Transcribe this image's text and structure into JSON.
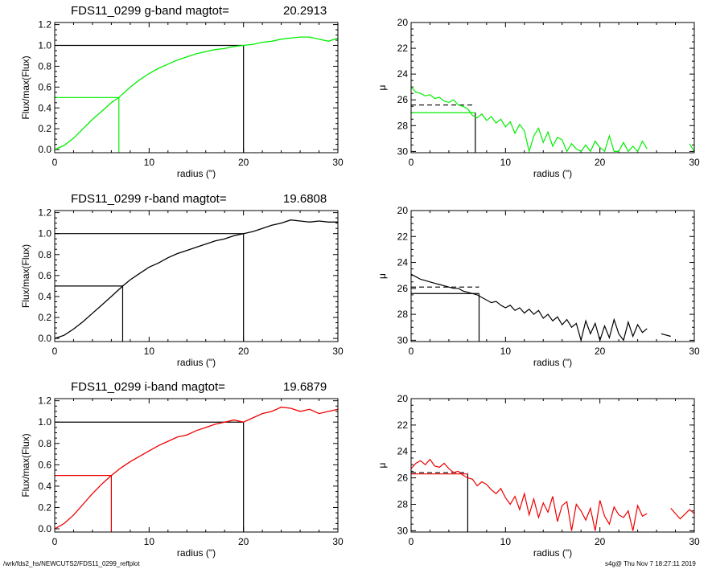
{
  "footer": {
    "path": "/wrk/fds2_hs/NEWCUTS2/FDS11_0299_reffplot",
    "stamp": "s4g@  Thu Nov  7 18:27:11 2019"
  },
  "chart_data": [
    {
      "type": "line",
      "band": "g",
      "color": "#00ee00",
      "title": "FDS11_0299 g-band  magtot=",
      "magtot": "20.2913",
      "xlabel": "radius (\")",
      "ylabel": "Flux/max(Flux)",
      "xlim": [
        0,
        30
      ],
      "ylim": [
        -0.03,
        1.22
      ],
      "xticks": [
        "0",
        "10",
        "20",
        "30"
      ],
      "yticks": [
        "0.0",
        "0.2",
        "0.4",
        "0.6",
        "0.8",
        "1.0",
        "1.2"
      ],
      "x": [
        0,
        1,
        2,
        3,
        4,
        5,
        6,
        6.8,
        8,
        9,
        10,
        11,
        12,
        13,
        14,
        15,
        16,
        17,
        18,
        19,
        20,
        21,
        22,
        23,
        24,
        25,
        26,
        27,
        28,
        29,
        30
      ],
      "y": [
        0,
        0.04,
        0.11,
        0.2,
        0.29,
        0.37,
        0.45,
        0.5,
        0.6,
        0.67,
        0.73,
        0.78,
        0.82,
        0.86,
        0.89,
        0.92,
        0.94,
        0.96,
        0.97,
        0.99,
        1.0,
        1.01,
        1.03,
        1.04,
        1.06,
        1.07,
        1.08,
        1.08,
        1.06,
        1.04,
        1.07
      ],
      "r_half": 6.8,
      "r_max": 20
    },
    {
      "type": "line",
      "band": "g",
      "color": "#00ee00",
      "xlabel": "radius (\")",
      "ylabel": "μ",
      "xlim": [
        0,
        30
      ],
      "ylim": [
        30.1,
        20
      ],
      "y_inverted": true,
      "xticks": [
        "0",
        "10",
        "20",
        "30"
      ],
      "yticks": [
        "20",
        "22",
        "24",
        "26",
        "28",
        "30"
      ],
      "x": [
        0,
        0.5,
        1,
        1.5,
        2,
        2.5,
        3,
        3.5,
        4,
        4.5,
        5,
        5.5,
        6,
        6.5,
        7,
        7.5,
        8,
        8.5,
        9,
        9.5,
        10,
        10.5,
        11,
        11.5,
        12,
        12.5,
        13,
        13.5,
        14,
        14.5,
        15,
        15.5,
        16,
        16.5,
        17,
        17.5,
        18,
        18.5,
        19,
        19.5,
        20,
        20.5,
        21,
        21.5,
        22,
        22.5,
        23,
        23.5,
        24,
        24.5,
        25,
        29.5,
        30
      ],
      "y": [
        25.0,
        25.4,
        25.5,
        25.7,
        25.6,
        25.9,
        25.8,
        26.1,
        26.2,
        26.0,
        26.4,
        26.5,
        26.7,
        27.2,
        27.4,
        27.1,
        27.6,
        27.3,
        27.8,
        27.5,
        28.1,
        27.7,
        28.6,
        27.9,
        28.4,
        30,
        28.8,
        28.2,
        29.3,
        28.5,
        29.6,
        28.9,
        29.1,
        30,
        29.4,
        29.8,
        30,
        29.5,
        30,
        29.2,
        29.7,
        30,
        28.8,
        30,
        30,
        29.3,
        30,
        29.6,
        30,
        29.2,
        29.8,
        29.4,
        30
      ],
      "r_e": 6.8,
      "mu_e": 27.0,
      "mu_mean": 26.4
    },
    {
      "type": "line",
      "band": "r",
      "color": "#000000",
      "title": "FDS11_0299 r-band  magtot=",
      "magtot": "19.6808",
      "xlabel": "radius (\")",
      "ylabel": "Flux/max(Flux)",
      "xlim": [
        0,
        30
      ],
      "ylim": [
        -0.03,
        1.22
      ],
      "xticks": [
        "0",
        "10",
        "20",
        "30"
      ],
      "yticks": [
        "0.0",
        "0.2",
        "0.4",
        "0.6",
        "0.8",
        "1.0",
        "1.2"
      ],
      "x": [
        0,
        1,
        2,
        3,
        4,
        5,
        6,
        7.2,
        8,
        9,
        10,
        11,
        12,
        13,
        14,
        15,
        16,
        17,
        18,
        19,
        20,
        21,
        22,
        23,
        24,
        25,
        26,
        27,
        28,
        29,
        30
      ],
      "y": [
        0,
        0.03,
        0.09,
        0.16,
        0.24,
        0.32,
        0.4,
        0.5,
        0.56,
        0.62,
        0.68,
        0.72,
        0.77,
        0.81,
        0.84,
        0.87,
        0.9,
        0.93,
        0.95,
        0.98,
        1.0,
        1.02,
        1.05,
        1.08,
        1.1,
        1.13,
        1.12,
        1.11,
        1.12,
        1.11,
        1.11
      ],
      "r_half": 7.2,
      "r_max": 20
    },
    {
      "type": "line",
      "band": "r",
      "color": "#000000",
      "xlabel": "radius (\")",
      "ylabel": "μ",
      "xlim": [
        0,
        30
      ],
      "ylim": [
        30.1,
        20
      ],
      "y_inverted": true,
      "xticks": [
        "0",
        "10",
        "20",
        "30"
      ],
      "yticks": [
        "20",
        "22",
        "24",
        "26",
        "28",
        "30"
      ],
      "x": [
        0,
        0.5,
        1,
        1.5,
        2,
        2.5,
        3,
        3.5,
        4,
        4.5,
        5,
        5.5,
        6,
        6.5,
        7,
        7.5,
        8,
        8.5,
        9,
        9.5,
        10,
        10.5,
        11,
        11.5,
        12,
        12.5,
        13,
        13.5,
        14,
        14.5,
        15,
        15.5,
        16,
        16.5,
        17,
        17.5,
        18,
        18.5,
        19,
        19.5,
        20,
        20.5,
        21,
        21.5,
        22,
        22.5,
        23,
        23.5,
        24,
        24.5,
        25,
        26.5,
        27.5,
        29.5
      ],
      "y": [
        24.9,
        25.1,
        25.3,
        25.4,
        25.5,
        25.6,
        25.7,
        25.8,
        25.9,
        26.0,
        26.0,
        26.2,
        26.3,
        26.4,
        26.5,
        26.7,
        26.9,
        27.1,
        27.0,
        27.3,
        27.5,
        27.3,
        27.7,
        27.5,
        27.9,
        27.6,
        28.0,
        27.7,
        28.3,
        28.0,
        28.5,
        28.2,
        28.8,
        28.4,
        29.0,
        28.7,
        30,
        28.5,
        29.5,
        28.7,
        30,
        28.9,
        29.8,
        28.4,
        29.5,
        30,
        28.6,
        29.7,
        28.8,
        29.4,
        29.1,
        29.5,
        29.7,
        29.5
      ],
      "r_e": 7.2,
      "mu_e": 26.4,
      "mu_mean": 25.9
    },
    {
      "type": "line",
      "band": "i",
      "color": "#ee0000",
      "title": "FDS11_0299 i-band  magtot=",
      "magtot": "19.6879",
      "xlabel": "radius (\")",
      "ylabel": "Flux/max(Flux)",
      "xlim": [
        0,
        30
      ],
      "ylim": [
        -0.03,
        1.22
      ],
      "xticks": [
        "0",
        "10",
        "20",
        "30"
      ],
      "yticks": [
        "0.0",
        "0.2",
        "0.4",
        "0.6",
        "0.8",
        "1.0",
        "1.2"
      ],
      "x": [
        0,
        1,
        2,
        3,
        4,
        5,
        6,
        7,
        8,
        9,
        10,
        11,
        12,
        13,
        14,
        15,
        16,
        17,
        18,
        19,
        20,
        21,
        22,
        23,
        24,
        25,
        26,
        27,
        28,
        29,
        30
      ],
      "y": [
        0,
        0.05,
        0.13,
        0.23,
        0.33,
        0.42,
        0.5,
        0.57,
        0.63,
        0.68,
        0.73,
        0.78,
        0.82,
        0.86,
        0.88,
        0.92,
        0.95,
        0.98,
        1.0,
        1.02,
        1.0,
        1.04,
        1.08,
        1.1,
        1.14,
        1.13,
        1.1,
        1.12,
        1.08,
        1.1,
        1.12
      ],
      "r_half": 6.0,
      "r_max": 20
    },
    {
      "type": "line",
      "band": "i",
      "color": "#ee0000",
      "xlabel": "radius (\")",
      "ylabel": "μ",
      "xlim": [
        0,
        30
      ],
      "ylim": [
        30.1,
        20
      ],
      "y_inverted": true,
      "xticks": [
        "0",
        "10",
        "20",
        "30"
      ],
      "yticks": [
        "20",
        "22",
        "24",
        "26",
        "28",
        "30"
      ],
      "x": [
        0,
        0.5,
        1,
        1.5,
        2,
        2.5,
        3,
        3.5,
        4,
        4.5,
        5,
        5.5,
        6,
        6.5,
        7,
        7.5,
        8,
        8.5,
        9,
        9.5,
        10,
        10.5,
        11,
        11.5,
        12,
        12.5,
        13,
        13.5,
        14,
        14.5,
        15,
        15.5,
        16,
        16.5,
        17,
        17.5,
        18,
        18.5,
        19,
        19.5,
        20,
        20.5,
        21,
        21.5,
        22,
        22.5,
        23,
        23.5,
        24,
        24.5,
        25,
        27.5,
        28.5,
        29.5,
        30
      ],
      "y": [
        25.3,
        24.9,
        24.7,
        25.0,
        24.6,
        25.1,
        25.2,
        24.9,
        25.3,
        25.6,
        25.5,
        25.8,
        26.0,
        26.1,
        26.6,
        26.3,
        26.5,
        26.9,
        27.2,
        26.8,
        27.5,
        28.0,
        27.4,
        28.4,
        27.2,
        28.8,
        27.6,
        29.0,
        27.9,
        28.6,
        27.4,
        29.3,
        28.1,
        27.8,
        30,
        28.0,
        28.5,
        29.2,
        28.3,
        30,
        27.7,
        28.9,
        29.5,
        28.2,
        28.8,
        29.0,
        28.5,
        30,
        28.1,
        28.9,
        28.7,
        28.3,
        29.1,
        28.4,
        28.7
      ],
      "r_e": 6.0,
      "mu_e": 25.7,
      "mu_mean": 25.6
    }
  ]
}
